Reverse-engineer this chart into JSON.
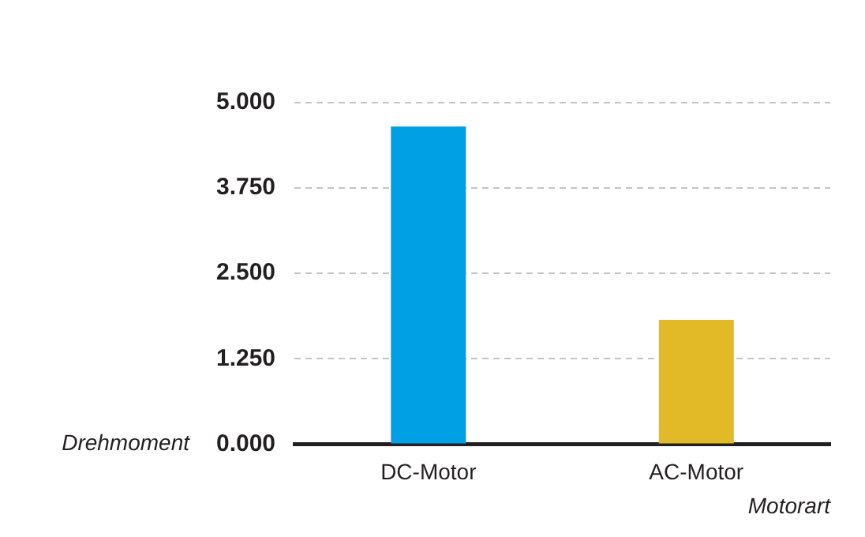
{
  "chart_data": {
    "type": "bar",
    "categories": [
      "DC-Motor",
      "AC-Motor"
    ],
    "values": [
      4.65,
      1.82
    ],
    "colors": [
      "#00a0e4",
      "#e2b927"
    ],
    "ylim": [
      0,
      5
    ],
    "yticks": [
      {
        "value": 0,
        "label": "0.000"
      },
      {
        "value": 1.25,
        "label": "1.250"
      },
      {
        "value": 2.5,
        "label": "2.500"
      },
      {
        "value": 3.75,
        "label": "3.750"
      },
      {
        "value": 5,
        "label": "5.000"
      }
    ],
    "ylabel": "Drehmoment",
    "xlabel": "Motorart",
    "grid": "y"
  }
}
